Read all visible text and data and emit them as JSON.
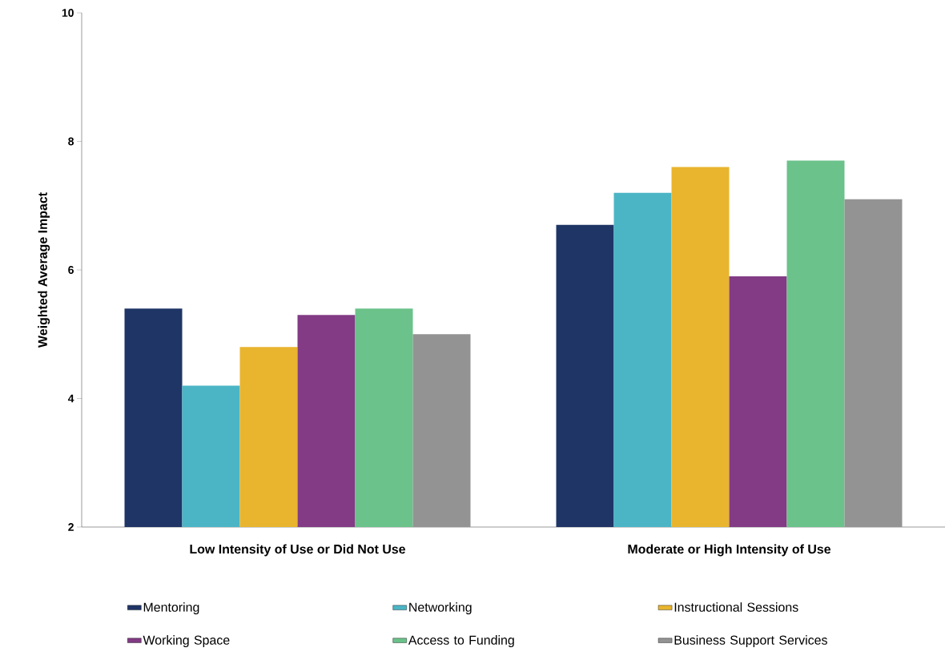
{
  "chart_data": {
    "type": "bar",
    "ylabel": "Weighted Average Impact",
    "categories": [
      "Low Intensity of Use or Did Not Use",
      "Moderate or High Intensity of Use"
    ],
    "series": [
      {
        "name": "Mentoring",
        "color": "#1f3566",
        "values": [
          5.4,
          6.7
        ]
      },
      {
        "name": "Networking",
        "color": "#4bb5c5",
        "values": [
          4.2,
          7.2
        ]
      },
      {
        "name": "Instructional Sessions",
        "color": "#e9b52e",
        "values": [
          4.8,
          7.6
        ]
      },
      {
        "name": "Working Space",
        "color": "#823b84",
        "values": [
          5.3,
          5.9
        ]
      },
      {
        "name": "Access to Funding",
        "color": "#6bc28a",
        "values": [
          5.4,
          7.7
        ]
      },
      {
        "name": "Business Support Services",
        "color": "#939393",
        "values": [
          5.0,
          7.1
        ]
      }
    ],
    "ylim": [
      2,
      10
    ],
    "yticks": [
      2,
      4,
      6,
      8,
      10
    ],
    "grid": false,
    "legend": "bottom"
  }
}
